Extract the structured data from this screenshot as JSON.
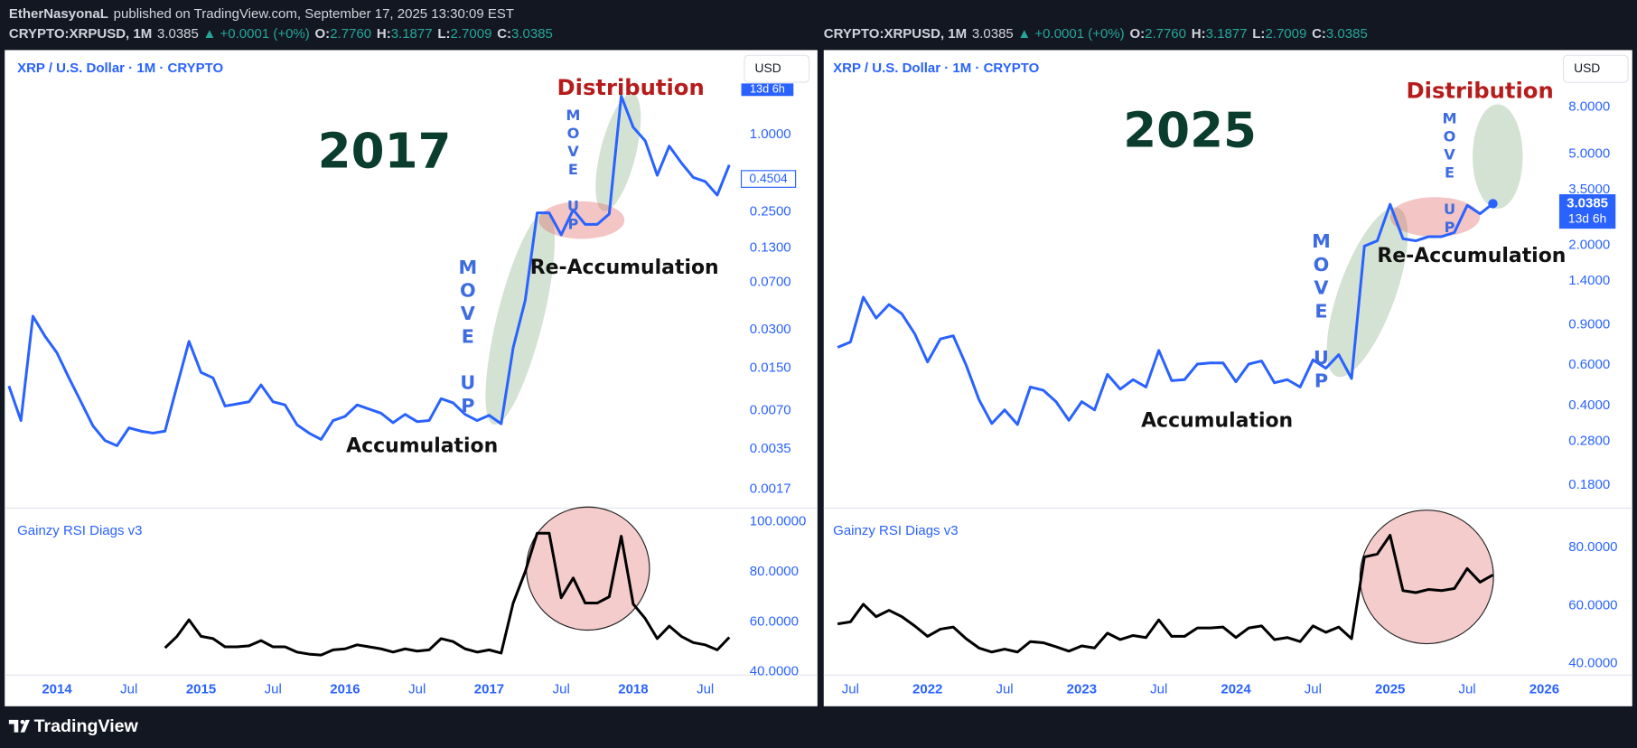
{
  "header": {
    "author": "EtherNasyonaL",
    "published": "published on TradingView.com, September 17, 2025 13:30:09 EST"
  },
  "footer": {
    "logo": "TradingView"
  },
  "chart_data": [
    {
      "type": "line",
      "title": "2017",
      "symbol": "CRYPTO:XRPUSD, 1M",
      "last": "3.0385",
      "change": "▲ +0.0001 (+0%)",
      "ohlc": [
        {
          "label": "O:",
          "value": "2.7760"
        },
        {
          "label": "H:",
          "value": "3.1877"
        },
        {
          "label": "L:",
          "value": "2.7009"
        },
        {
          "label": "C:",
          "value": "3.0385"
        }
      ],
      "currency": "USD",
      "annotations": [
        "Distribution",
        "MOVE UP",
        "MOVE UP",
        "Re-Accumulation",
        "Accumulation"
      ],
      "x": [
        "2013-09",
        "2013-10",
        "2013-11",
        "2013-12",
        "2014-01",
        "2014-02",
        "2014-03",
        "2014-04",
        "2014-05",
        "2014-06",
        "2014-07",
        "2014-08",
        "2014-09",
        "2014-10",
        "2014-11",
        "2014-12",
        "2015-01",
        "2015-02",
        "2015-03",
        "2015-04",
        "2015-05",
        "2015-06",
        "2015-07",
        "2015-08",
        "2015-09",
        "2015-10",
        "2015-11",
        "2015-12",
        "2016-01",
        "2016-02",
        "2016-03",
        "2016-04",
        "2016-05",
        "2016-06",
        "2016-07",
        "2016-08",
        "2016-09",
        "2016-10",
        "2016-11",
        "2016-12",
        "2017-01",
        "2017-02",
        "2017-03",
        "2017-04",
        "2017-05",
        "2017-06",
        "2017-07",
        "2017-08",
        "2017-09",
        "2017-10",
        "2017-11",
        "2017-12",
        "2018-01",
        "2018-02",
        "2018-03",
        "2018-04",
        "2018-05",
        "2018-06",
        "2018-07",
        "2018-08",
        "2018-09"
      ],
      "xlim": [
        "2013-09",
        "2018-10"
      ],
      "xticks": [
        {
          "value": "2014-01",
          "label": "2014"
        },
        {
          "value": "2014-07",
          "label": "Jul"
        },
        {
          "value": "2015-01",
          "label": "2015"
        },
        {
          "value": "2015-07",
          "label": "Jul"
        },
        {
          "value": "2016-01",
          "label": "2016"
        },
        {
          "value": "2016-07",
          "label": "Jul"
        },
        {
          "value": "2017-01",
          "label": "2017"
        },
        {
          "value": "2017-07",
          "label": "Jul"
        },
        {
          "value": "2018-01",
          "label": "2018"
        },
        {
          "value": "2018-07",
          "label": "Jul"
        }
      ],
      "log_y": true,
      "grid": false,
      "ylim": [
        0.00126,
        4.57
      ],
      "yticks": [
        {
          "value": 1,
          "label": "1.0000"
        },
        {
          "value": 0.25,
          "label": "0.2500"
        },
        {
          "value": 0.13,
          "label": "0.1300"
        },
        {
          "value": 0.07,
          "label": "0.0700"
        },
        {
          "value": 0.03,
          "label": "0.0300"
        },
        {
          "value": 0.015,
          "label": "0.0150"
        },
        {
          "value": 0.007,
          "label": "0.0070"
        },
        {
          "value": 0.0035,
          "label": "0.0035"
        },
        {
          "value": 0.0017,
          "label": "0.0017"
        }
      ],
      "y2lim": [
        39.6,
        104.2
      ],
      "y2ticks": [
        {
          "value": 100,
          "label": "100.0000"
        },
        {
          "value": 80,
          "label": "80.0000"
        },
        {
          "value": 60,
          "label": "60.0000"
        },
        {
          "value": 40,
          "label": "40.0000"
        }
      ],
      "last_price": 0.4504,
      "countdown": "13d 6h",
      "series": [
        {
          "name": "XRP / U.S. Dollar · 1M · CRYPTO",
          "color": "#2962ff",
          "values": [
            0.0109,
            0.00585,
            0.0382,
            0.0267,
            0.0198,
            0.0126,
            0.0082,
            0.00532,
            0.00409,
            0.00372,
            0.00513,
            0.00484,
            0.00467,
            0.00484,
            0.0109,
            0.0243,
            0.0139,
            0.0126,
            0.0076,
            0.00789,
            0.0082,
            0.0111,
            0.0082,
            0.00775,
            0.00542,
            0.00467,
            0.00417,
            0.00585,
            0.00631,
            0.00775,
            0.00719,
            0.00667,
            0.00563,
            0.00654,
            0.00574,
            0.00585,
            0.00867,
            0.00804,
            0.00654,
            0.00585,
            0.00643,
            0.00552,
            0.0217,
            0.0506,
            0.245,
            0.245,
            0.165,
            0.259,
            0.199,
            0.199,
            0.24,
            2.0,
            1.14,
            0.894,
            0.481,
            0.813,
            0.603,
            0.463,
            0.43,
            0.337,
            0.58
          ]
        },
        {
          "name": "Gainzy RSI Diags v3",
          "color": "#000000",
          "axis": "y2",
          "values": [
            null,
            null,
            null,
            null,
            null,
            null,
            null,
            null,
            null,
            null,
            null,
            null,
            null,
            49.6,
            54.2,
            60.8,
            54.2,
            53.3,
            50.0,
            50.0,
            50.4,
            52.5,
            50.0,
            50.0,
            47.9,
            47.1,
            46.7,
            48.8,
            49.2,
            50.8,
            50.0,
            49.2,
            47.9,
            49.2,
            48.3,
            48.8,
            53.3,
            52.1,
            49.2,
            47.9,
            48.8,
            47.5,
            67.5,
            80.0,
            95.4,
            95.4,
            69.6,
            77.5,
            67.5,
            67.5,
            70.0,
            94.2,
            67.1,
            61.3,
            53.3,
            58.3,
            54.2,
            51.7,
            50.8,
            48.8,
            53.8
          ]
        }
      ]
    },
    {
      "type": "line",
      "title": "2025",
      "symbol": "CRYPTO:XRPUSD, 1M",
      "last": "3.0385",
      "change": "▲ +0.0001 (+0%)",
      "ohlc": [
        {
          "label": "O:",
          "value": "2.7760"
        },
        {
          "label": "H:",
          "value": "3.1877"
        },
        {
          "label": "L:",
          "value": "2.7009"
        },
        {
          "label": "C:",
          "value": "3.0385"
        }
      ],
      "currency": "USD",
      "annotations": [
        "Distribution",
        "MOVE UP",
        "MOVE UP",
        "Re-Accumulation",
        "Accumulation"
      ],
      "x": [
        "2021-06",
        "2021-07",
        "2021-08",
        "2021-09",
        "2021-10",
        "2021-11",
        "2021-12",
        "2022-01",
        "2022-02",
        "2022-03",
        "2022-04",
        "2022-05",
        "2022-06",
        "2022-07",
        "2022-08",
        "2022-09",
        "2022-10",
        "2022-11",
        "2022-12",
        "2023-01",
        "2023-02",
        "2023-03",
        "2023-04",
        "2023-05",
        "2023-06",
        "2023-07",
        "2023-08",
        "2023-09",
        "2023-10",
        "2023-11",
        "2023-12",
        "2024-01",
        "2024-02",
        "2024-03",
        "2024-04",
        "2024-05",
        "2024-06",
        "2024-07",
        "2024-08",
        "2024-09",
        "2024-10",
        "2024-11",
        "2024-12",
        "2025-01",
        "2025-02",
        "2025-03",
        "2025-04",
        "2025-05",
        "2025-06",
        "2025-07",
        "2025-08",
        "2025-09"
      ],
      "xlim": [
        "2021-05",
        "2026-02"
      ],
      "xticks": [
        {
          "value": "2021-07",
          "label": "Jul"
        },
        {
          "value": "2022-01",
          "label": "2022"
        },
        {
          "value": "2022-07",
          "label": "Jul"
        },
        {
          "value": "2023-01",
          "label": "2023"
        },
        {
          "value": "2023-07",
          "label": "Jul"
        },
        {
          "value": "2024-01",
          "label": "2024"
        },
        {
          "value": "2024-07",
          "label": "Jul"
        },
        {
          "value": "2025-01",
          "label": "2025"
        },
        {
          "value": "2025-07",
          "label": "Jul"
        },
        {
          "value": "2026-01",
          "label": "2026"
        }
      ],
      "log_y": true,
      "grid": false,
      "ylim": [
        0.146,
        14.2
      ],
      "yticks": [
        {
          "value": 8,
          "label": "8.0000"
        },
        {
          "value": 5,
          "label": "5.0000"
        },
        {
          "value": 3.5,
          "label": "3.5000"
        },
        {
          "value": 2,
          "label": "2.0000"
        },
        {
          "value": 1.4,
          "label": "1.4000"
        },
        {
          "value": 0.9,
          "label": "0.9000"
        },
        {
          "value": 0.6,
          "label": "0.6000"
        },
        {
          "value": 0.4,
          "label": "0.4000"
        },
        {
          "value": 0.28,
          "label": "0.2800"
        },
        {
          "value": 0.18,
          "label": "0.1800"
        }
      ],
      "y2lim": [
        36.8,
        92.6
      ],
      "y2ticks": [
        {
          "value": 80,
          "label": "80.0000"
        },
        {
          "value": 60,
          "label": "60.0000"
        },
        {
          "value": 40,
          "label": "40.0000"
        }
      ],
      "last_price": 3.0385,
      "countdown": "13d 6h",
      "series": [
        {
          "name": "XRP / U.S. Dollar · 1M · CRYPTO",
          "color": "#2962ff",
          "values": [
            0.718,
            0.757,
            1.188,
            0.963,
            1.103,
            1.005,
            0.823,
            0.62,
            0.781,
            0.806,
            0.601,
            0.425,
            0.334,
            0.383,
            0.331,
            0.482,
            0.467,
            0.416,
            0.345,
            0.416,
            0.383,
            0.547,
            0.472,
            0.519,
            0.482,
            0.696,
            0.514,
            0.519,
            0.607,
            0.614,
            0.614,
            0.508,
            0.607,
            0.626,
            0.503,
            0.519,
            0.482,
            0.633,
            0.582,
            0.667,
            0.525,
            1.985,
            2.092,
            3.019,
            2.136,
            2.092,
            2.181,
            2.181,
            2.274,
            2.987,
            2.746,
            3.0385
          ]
        },
        {
          "name": "Gainzy RSI Diags v3",
          "color": "#000000",
          "axis": "y2",
          "values": [
            53.7,
            54.4,
            60.5,
            56.2,
            58.4,
            56.2,
            53.0,
            49.4,
            51.9,
            52.6,
            48.6,
            45.4,
            44.0,
            45.0,
            44.0,
            47.6,
            47.2,
            45.8,
            44.3,
            46.1,
            45.4,
            50.5,
            48.3,
            49.7,
            49.0,
            55.1,
            49.4,
            49.4,
            52.3,
            52.3,
            52.6,
            49.0,
            52.3,
            53.0,
            48.3,
            49.0,
            47.6,
            53.0,
            50.8,
            52.6,
            48.6,
            76.8,
            77.8,
            84.3,
            65.2,
            64.5,
            65.6,
            65.2,
            65.9,
            72.8,
            68.1,
            70.6
          ]
        }
      ]
    }
  ]
}
